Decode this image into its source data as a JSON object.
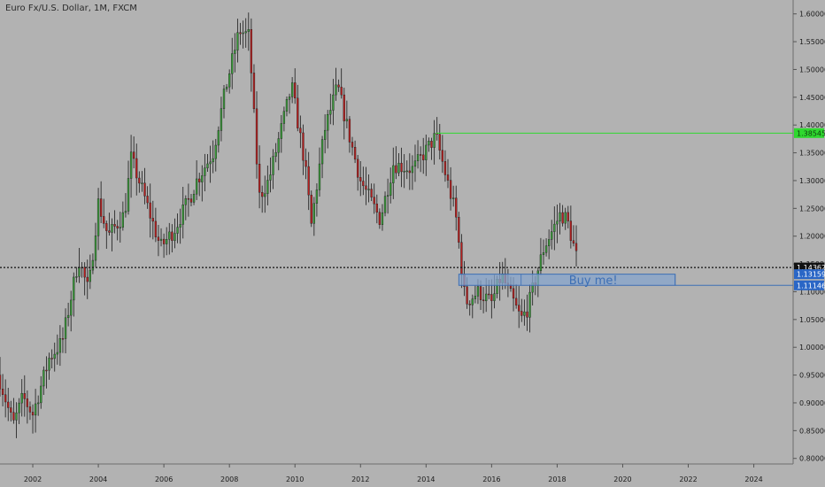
{
  "title": "Euro Fx/U.S. Dollar, 1M, FXCM",
  "colors": {
    "background": "#b2b2b2",
    "up": "#3a9a3a",
    "down": "#b72020",
    "wick": "#2a2a2a",
    "resistance": "#2fd92f",
    "zone_fill": "#86a4cc",
    "zone_border": "#3d6fb5",
    "price_line": "#101010",
    "tag_blue": "#2a66c6"
  },
  "chart_data": {
    "type": "candlestick",
    "title": "Euro Fx/U.S. Dollar, 1M, FXCM",
    "x_ticks": [
      "2002",
      "2004",
      "2006",
      "2008",
      "2010",
      "2012",
      "2014",
      "2016",
      "2018",
      "2020",
      "2022",
      "2024"
    ],
    "y_ticks": [
      "1.60000",
      "1.55000",
      "1.50000",
      "1.45000",
      "1.40000",
      "1.35000",
      "1.30000",
      "1.25000",
      "1.20000",
      "1.15000",
      "1.10000",
      "1.05000",
      "1.00000",
      "0.95000",
      "0.90000",
      "0.85000",
      "0.80000"
    ],
    "ylim": [
      0.79,
      1.625
    ],
    "xlim": [
      2001.0,
      2025.2
    ],
    "grid": false,
    "current_price": {
      "value": 1.14362,
      "label": "1.14362"
    },
    "resistance": {
      "value": 1.38545,
      "label": "1.38545",
      "from_year": 2014.3
    },
    "zone": {
      "top": 1.13159,
      "bottom": 1.11146,
      "top_label": "1.13159",
      "bottom_label": "1.11146",
      "from_year": 2015.0,
      "to_year": 2021.6,
      "text": "Buy me!"
    },
    "monthly_close_anchors": [
      [
        2001.0,
        0.94
      ],
      [
        2001.4,
        0.86
      ],
      [
        2001.7,
        0.91
      ],
      [
        2002.0,
        0.88
      ],
      [
        2002.5,
        0.98
      ],
      [
        2002.9,
        1.01
      ],
      [
        2003.4,
        1.16
      ],
      [
        2003.7,
        1.1
      ],
      [
        2004.0,
        1.26
      ],
      [
        2004.3,
        1.2
      ],
      [
        2004.8,
        1.24
      ],
      [
        2005.0,
        1.34
      ],
      [
        2005.3,
        1.29
      ],
      [
        2005.9,
        1.18
      ],
      [
        2006.3,
        1.21
      ],
      [
        2006.8,
        1.27
      ],
      [
        2007.0,
        1.3
      ],
      [
        2007.5,
        1.35
      ],
      [
        2007.9,
        1.47
      ],
      [
        2008.3,
        1.57
      ],
      [
        2008.6,
        1.56
      ],
      [
        2008.9,
        1.27
      ],
      [
        2009.2,
        1.3
      ],
      [
        2009.9,
        1.47
      ],
      [
        2010.3,
        1.33
      ],
      [
        2010.5,
        1.22
      ],
      [
        2010.9,
        1.39
      ],
      [
        2011.3,
        1.47
      ],
      [
        2011.7,
        1.37
      ],
      [
        2012.0,
        1.3
      ],
      [
        2012.6,
        1.23
      ],
      [
        2013.0,
        1.33
      ],
      [
        2013.6,
        1.32
      ],
      [
        2014.3,
        1.38
      ],
      [
        2014.9,
        1.24
      ],
      [
        2015.2,
        1.08
      ],
      [
        2015.6,
        1.1
      ],
      [
        2016.0,
        1.08
      ],
      [
        2016.3,
        1.13
      ],
      [
        2016.9,
        1.05
      ],
      [
        2017.1,
        1.07
      ],
      [
        2017.6,
        1.18
      ],
      [
        2018.1,
        1.24
      ],
      [
        2018.3,
        1.23
      ],
      [
        2018.6,
        1.16
      ]
    ]
  }
}
